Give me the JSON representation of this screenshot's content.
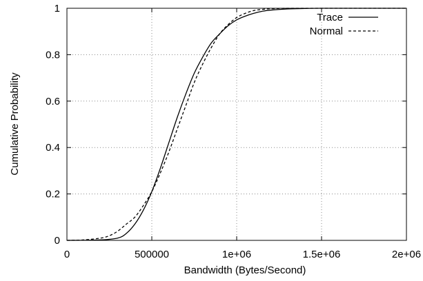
{
  "chart_data": {
    "type": "line",
    "title": "",
    "xlabel": "Bandwidth (Bytes/Second)",
    "ylabel": "Cumulative Probability",
    "xlim": [
      0,
      2000000
    ],
    "ylim": [
      0,
      1
    ],
    "x_ticks": [
      0,
      500000,
      1000000,
      1500000,
      2000000
    ],
    "x_tick_labels": [
      "0",
      "500000",
      "1e+06",
      "1.5e+06",
      "2e+06"
    ],
    "y_ticks": [
      0,
      0.2,
      0.4,
      0.6,
      0.8,
      1
    ],
    "y_tick_labels": [
      "0",
      "0.2",
      "0.4",
      "0.6",
      "0.8",
      "1"
    ],
    "grid": true,
    "legend_position": "top-right",
    "series": [
      {
        "name": "Trace",
        "style": "solid",
        "color": "#000000",
        "x": [
          0,
          200000,
          300000,
          350000,
          400000,
          450000,
          500000,
          550000,
          600000,
          650000,
          700000,
          750000,
          800000,
          850000,
          900000,
          950000,
          1000000,
          1050000,
          1100000,
          1150000,
          1200000,
          1300000,
          1400000,
          1500000,
          2000000
        ],
        "y": [
          0,
          0.002,
          0.01,
          0.03,
          0.07,
          0.13,
          0.21,
          0.31,
          0.42,
          0.53,
          0.63,
          0.72,
          0.79,
          0.85,
          0.89,
          0.925,
          0.95,
          0.966,
          0.978,
          0.987,
          0.992,
          0.997,
          0.999,
          1.0,
          1.0
        ]
      },
      {
        "name": "Normal",
        "style": "dashed",
        "color": "#000000",
        "x": [
          0,
          100000,
          200000,
          250000,
          300000,
          350000,
          400000,
          450000,
          500000,
          550000,
          600000,
          650000,
          700000,
          750000,
          800000,
          850000,
          900000,
          950000,
          1000000,
          1050000,
          1100000,
          1150000,
          1200000,
          1300000,
          1400000,
          1500000,
          2000000
        ],
        "y": [
          0,
          0.002,
          0.01,
          0.02,
          0.04,
          0.07,
          0.1,
          0.15,
          0.21,
          0.29,
          0.38,
          0.48,
          0.58,
          0.68,
          0.76,
          0.83,
          0.89,
          0.93,
          0.96,
          0.978,
          0.99,
          0.995,
          0.998,
          1.0,
          1.0,
          1.0,
          1.0
        ]
      }
    ]
  }
}
